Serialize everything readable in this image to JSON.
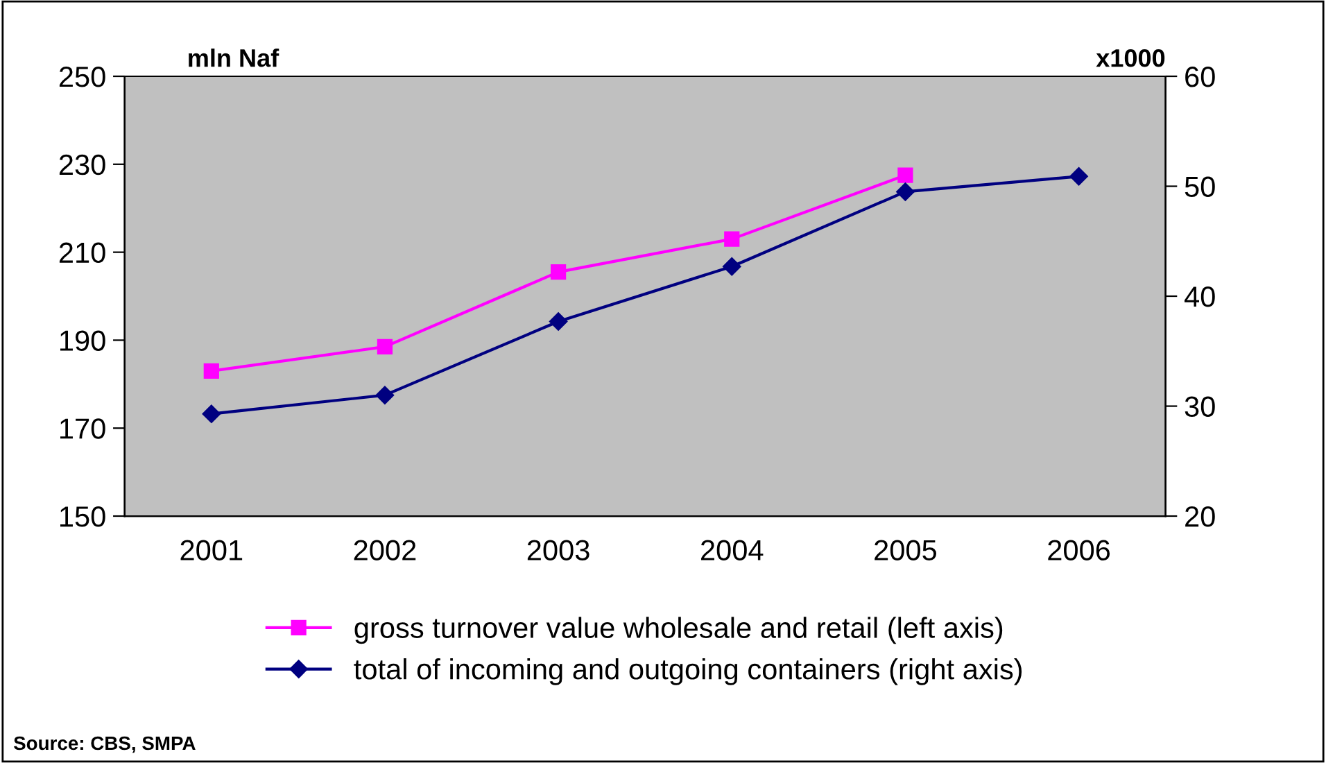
{
  "chart_data": {
    "type": "line",
    "ylabel": "mln Naf",
    "y2label": "x1000",
    "categories": [
      "2001",
      "2002",
      "2003",
      "2004",
      "2005",
      "2006"
    ],
    "series": [
      {
        "name": "gross turnover value wholesale and retail (left axis)",
        "color": "#ff00ff",
        "marker": "square",
        "values": [
          183,
          188.5,
          205.5,
          213,
          227.5,
          null
        ]
      },
      {
        "name": "total of incoming and outgoing containers (right axis)",
        "color": "#000080",
        "marker": "diamond",
        "axis": "y2",
        "values": [
          29.3,
          31,
          37.7,
          42.7,
          49.5,
          50.9
        ]
      }
    ],
    "ylim": [
      150,
      250
    ],
    "yticks": [
      150,
      170,
      190,
      210,
      230,
      250
    ],
    "y2lim": [
      20,
      60
    ],
    "y2ticks": [
      20,
      30,
      40,
      50,
      60
    ],
    "grid": false,
    "legend": "bottom",
    "line_style": "solid",
    "annotations": [
      "Source: CBS, SMPA"
    ]
  }
}
